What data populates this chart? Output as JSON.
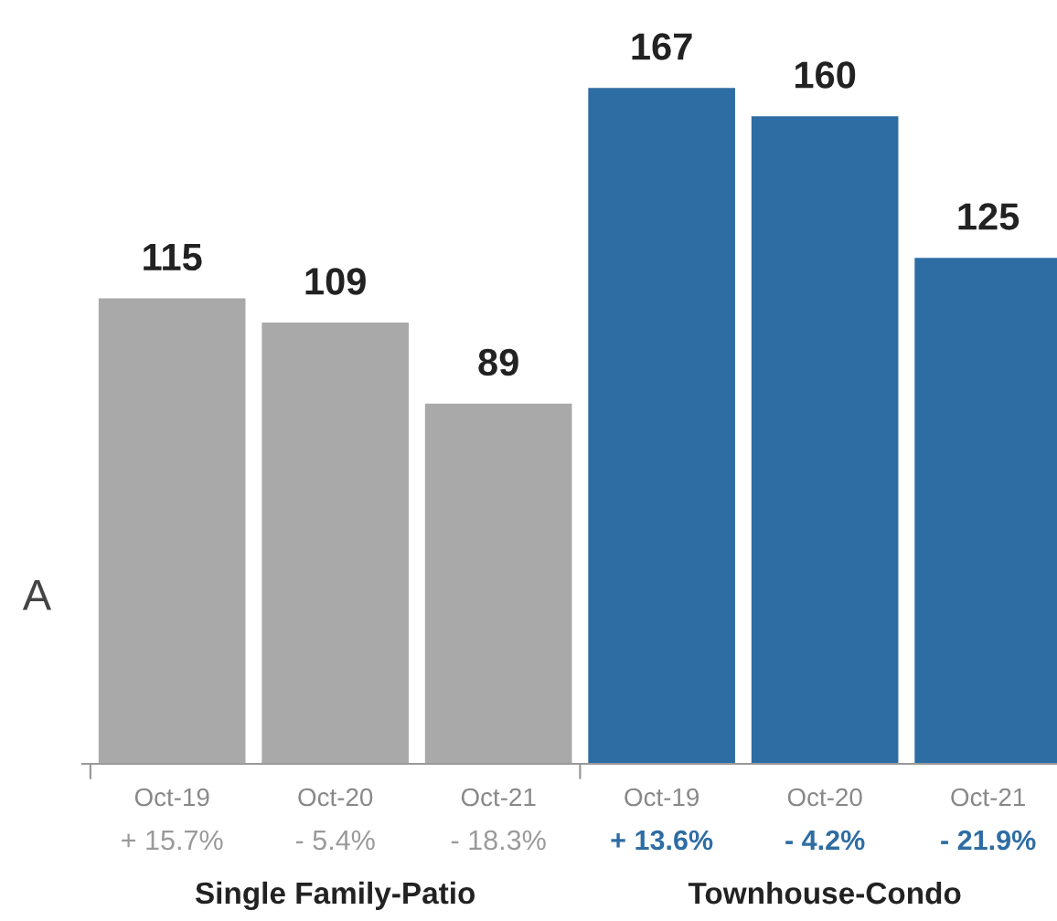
{
  "chart_data": {
    "type": "bar",
    "categories": [
      "Oct-19\n+ 15.7%",
      "Oct-20\n- 5.4%",
      "Oct-21\n- 18.3%",
      "Oct-19\n+ 13.6%",
      "Oct-20\n- 4.2%",
      "Oct-21\n- 21.9%"
    ],
    "series": [
      {
        "color": "#a9a9a9",
        "values": [
          115,
          109,
          89,
          null,
          null,
          null
        ]
      },
      {
        "color": "#2e6da4",
        "values": [
          null,
          null,
          null,
          167,
          160,
          125
        ]
      }
    ],
    "data_labels": true,
    "grid": false,
    "legend": false,
    "annotations": [
      "A",
      "Single Family-Patio",
      "Townhouse-Condo"
    ]
  }
}
